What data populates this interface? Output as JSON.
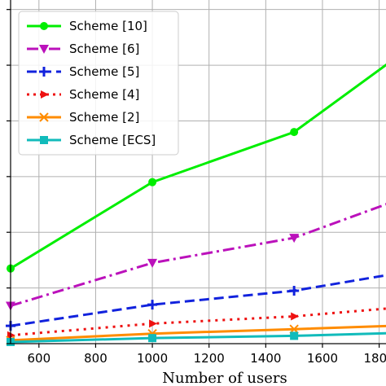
{
  "chart_data": {
    "type": "line",
    "xlabel": "Number of users",
    "ylabel": "",
    "xlim": [
      500,
      1850
    ],
    "ylim": [
      0,
      62
    ],
    "xticks": [
      600,
      800,
      1000,
      1200,
      1400,
      1600,
      1800
    ],
    "xtick_labels": [
      "600",
      "800",
      "1000",
      "1200",
      "1400",
      "1600",
      "1800"
    ],
    "yticks": [
      0,
      10,
      20,
      30,
      40,
      50,
      60
    ],
    "grid": true,
    "legend_position": "top-left",
    "x": [
      500,
      1000,
      1500,
      1850
    ],
    "series": [
      {
        "name": "Scheme [10]",
        "values": [
          13.5,
          29.0,
          38.0,
          51.0
        ],
        "color": "#00ee00",
        "linestyle": "solid",
        "marker": "circle"
      },
      {
        "name": "Scheme [6]",
        "values": [
          6.8,
          14.5,
          19.0,
          25.5
        ],
        "color": "#bb11bb",
        "linestyle": "dashdot",
        "marker": "triangle-down"
      },
      {
        "name": "Scheme [5]",
        "values": [
          3.2,
          7.0,
          9.5,
          12.5
        ],
        "color": "#1122dd",
        "linestyle": "dashed",
        "marker": "plus"
      },
      {
        "name": "Scheme [4]",
        "values": [
          1.5,
          3.6,
          4.9,
          6.4
        ],
        "color": "#ee1111",
        "linestyle": "dotted",
        "marker": "tri-right"
      },
      {
        "name": "Scheme [2]",
        "values": [
          0.6,
          1.8,
          2.6,
          3.2
        ],
        "color": "#ff8c00",
        "linestyle": "solid",
        "marker": "x"
      },
      {
        "name": "Scheme [ECS]",
        "values": [
          0.3,
          1.0,
          1.4,
          1.9
        ],
        "color": "#11bbbb",
        "linestyle": "solid",
        "marker": "square"
      }
    ]
  }
}
